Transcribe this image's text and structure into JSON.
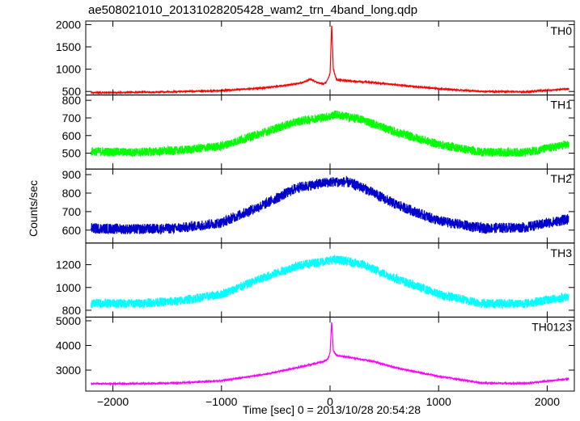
{
  "chart_data": {
    "type": "line",
    "title": "ae508021010_20131028205428_wam2_trn_4band_long.qdp",
    "xlabel": "Time [sec] 0 = 2013/10/28 20:54:28",
    "ylabel": "Counts/sec",
    "xlim": [
      -2250,
      2250
    ],
    "x_ticks": [
      -2000,
      -1000,
      0,
      1000,
      2000
    ],
    "x_tick_labels": [
      "−2000",
      "−1000",
      "0",
      "1000",
      "2000"
    ],
    "grid": false,
    "panels": [
      {
        "name": "TH0",
        "color": "#ff0000",
        "ylim": [
          420,
          2080
        ],
        "y_ticks": [
          500,
          1000,
          1500,
          2000
        ],
        "x": [
          -2200,
          -1800,
          -1400,
          -1000,
          -600,
          -400,
          -250,
          -180,
          -120,
          -60,
          -30,
          0,
          15,
          30,
          60,
          120,
          200,
          400,
          600,
          1000,
          1400,
          1800,
          2200
        ],
        "y": [
          470,
          480,
          495,
          520,
          580,
          640,
          700,
          780,
          700,
          670,
          720,
          900,
          2020,
          1000,
          760,
          750,
          730,
          700,
          650,
          560,
          500,
          490,
          560
        ]
      },
      {
        "name": "TH1",
        "color": "#00ff00",
        "ylim": [
          410,
          830
        ],
        "y_ticks": [
          500,
          600,
          700,
          800
        ],
        "x": [
          -2200,
          -1800,
          -1400,
          -1000,
          -600,
          -300,
          0,
          50,
          300,
          600,
          1000,
          1400,
          1800,
          2200
        ],
        "y": [
          510,
          505,
          515,
          540,
          620,
          680,
          710,
          720,
          690,
          620,
          550,
          505,
          505,
          550
        ],
        "noise": 25
      },
      {
        "name": "TH2",
        "color": "#0000cc",
        "ylim": [
          530,
          930
        ],
        "y_ticks": [
          600,
          700,
          800,
          900
        ],
        "x": [
          -2200,
          -1800,
          -1400,
          -1000,
          -600,
          -300,
          0,
          150,
          300,
          600,
          1000,
          1400,
          1800,
          2200
        ],
        "y": [
          610,
          605,
          610,
          640,
          740,
          830,
          860,
          860,
          830,
          740,
          650,
          610,
          615,
          660
        ],
        "noise": 28
      },
      {
        "name": "TH3",
        "color": "#00ffff",
        "ylim": [
          740,
          1390
        ],
        "y_ticks": [
          800,
          1000,
          1200
        ],
        "x": [
          -2200,
          -1800,
          -1400,
          -1000,
          -600,
          -300,
          0,
          100,
          300,
          600,
          1000,
          1400,
          1800,
          2200
        ],
        "y": [
          860,
          860,
          880,
          940,
          1090,
          1190,
          1240,
          1240,
          1200,
          1080,
          940,
          860,
          860,
          920
        ],
        "noise": 40
      },
      {
        "name": "TH0123",
        "color": "#ff00ff",
        "ylim": [
          2150,
          5150
        ],
        "y_ticks": [
          3000,
          4000,
          5000
        ],
        "x": [
          -2200,
          -1800,
          -1400,
          -1000,
          -600,
          -300,
          -60,
          -20,
          0,
          15,
          30,
          60,
          200,
          400,
          600,
          1000,
          1400,
          1800,
          2200
        ],
        "y": [
          2450,
          2450,
          2480,
          2570,
          2830,
          3100,
          3350,
          3450,
          3700,
          5000,
          3800,
          3600,
          3500,
          3350,
          3100,
          2750,
          2480,
          2460,
          2650
        ]
      }
    ]
  }
}
